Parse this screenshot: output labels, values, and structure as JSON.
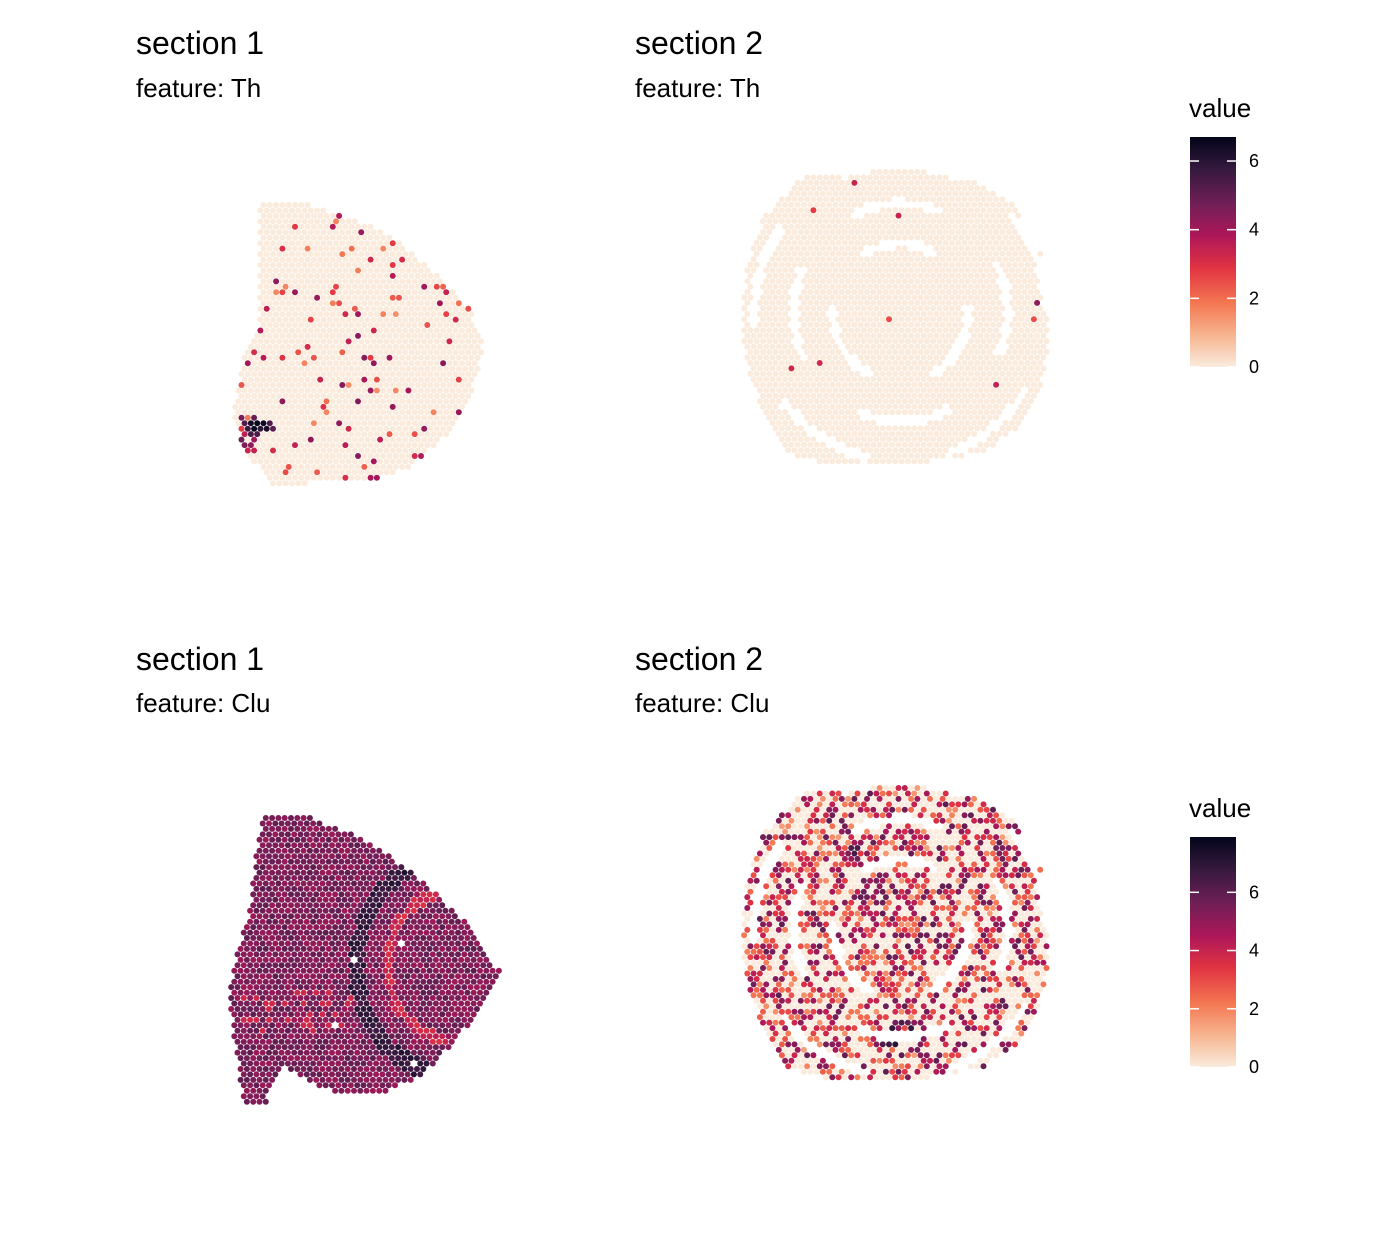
{
  "chart_data": [
    {
      "type": "heatmap",
      "subtype": "spatial-spot-map",
      "title": "section 1",
      "subtitle": "feature:  Th",
      "colormap": "rocket (reversed)",
      "range": [
        0,
        6.7
      ],
      "background_value": 0,
      "hotspots": [
        {
          "x": 0.09,
          "y": 0.78,
          "sx": 0.07,
          "sy": 0.035,
          "value": 6.5
        },
        {
          "x": 0.04,
          "y": 0.84,
          "sx": 0.045,
          "sy": 0.04,
          "value": 4.5
        }
      ],
      "sparse_expression": {
        "fraction": 0.07,
        "value_range": [
          1.5,
          4.5
        ]
      }
    },
    {
      "type": "heatmap",
      "subtype": "spatial-spot-map",
      "title": "section 2",
      "subtitle": "feature:  Th",
      "colormap": "rocket (reversed)",
      "range": [
        0,
        6.7
      ],
      "background_value": 0,
      "hotspots": [],
      "sparse_expression": {
        "fraction": 0.004,
        "value_range": [
          2.5,
          4.5
        ]
      }
    },
    {
      "type": "heatmap",
      "subtype": "spatial-spot-map",
      "title": "section 1",
      "subtitle": "feature:  Clu",
      "colormap": "rocket (reversed)",
      "range": [
        0,
        7.9
      ],
      "background_value": 5.4,
      "noise": 0.6,
      "band_value": 6.8,
      "inner_band_value": 3.8,
      "sparse_expression": {
        "fraction": 0.004,
        "value_range": [
          0,
          0
        ]
      }
    },
    {
      "type": "heatmap",
      "subtype": "spatial-spot-map",
      "title": "section 2",
      "subtitle": "feature:  Clu",
      "colormap": "rocket (reversed)",
      "range": [
        0,
        7.9
      ],
      "background_value": 0,
      "hotspots": [
        {
          "x": 0.52,
          "y": 0.85,
          "sx": 0.08,
          "sy": 0.05,
          "value": 7.5
        },
        {
          "x": 0.37,
          "y": 0.22,
          "sx": 0.03,
          "sy": 0.03,
          "value": 6.5
        },
        {
          "x": 0.4,
          "y": 0.38,
          "sx": 0.04,
          "sy": 0.03,
          "value": 6.0
        }
      ],
      "sparse_expression": {
        "fraction": 0.55,
        "value_range": [
          1.5,
          6.0
        ]
      }
    }
  ],
  "legends": [
    {
      "title": "value",
      "range": [
        0,
        6.7
      ],
      "ticks": [
        "0",
        "2",
        "4",
        "6"
      ],
      "tick_values": [
        0,
        2,
        4,
        6
      ]
    },
    {
      "title": "value",
      "range": [
        0,
        7.9
      ],
      "ticks": [
        "0",
        "2",
        "4",
        "6"
      ],
      "tick_values": [
        0,
        2,
        4,
        6
      ]
    }
  ],
  "colors": {
    "rocket_reversed": [
      "#faebdd",
      "#f6b48f",
      "#f37651",
      "#e13342",
      "#ad1759",
      "#701f57",
      "#35193e",
      "#03051a"
    ]
  }
}
